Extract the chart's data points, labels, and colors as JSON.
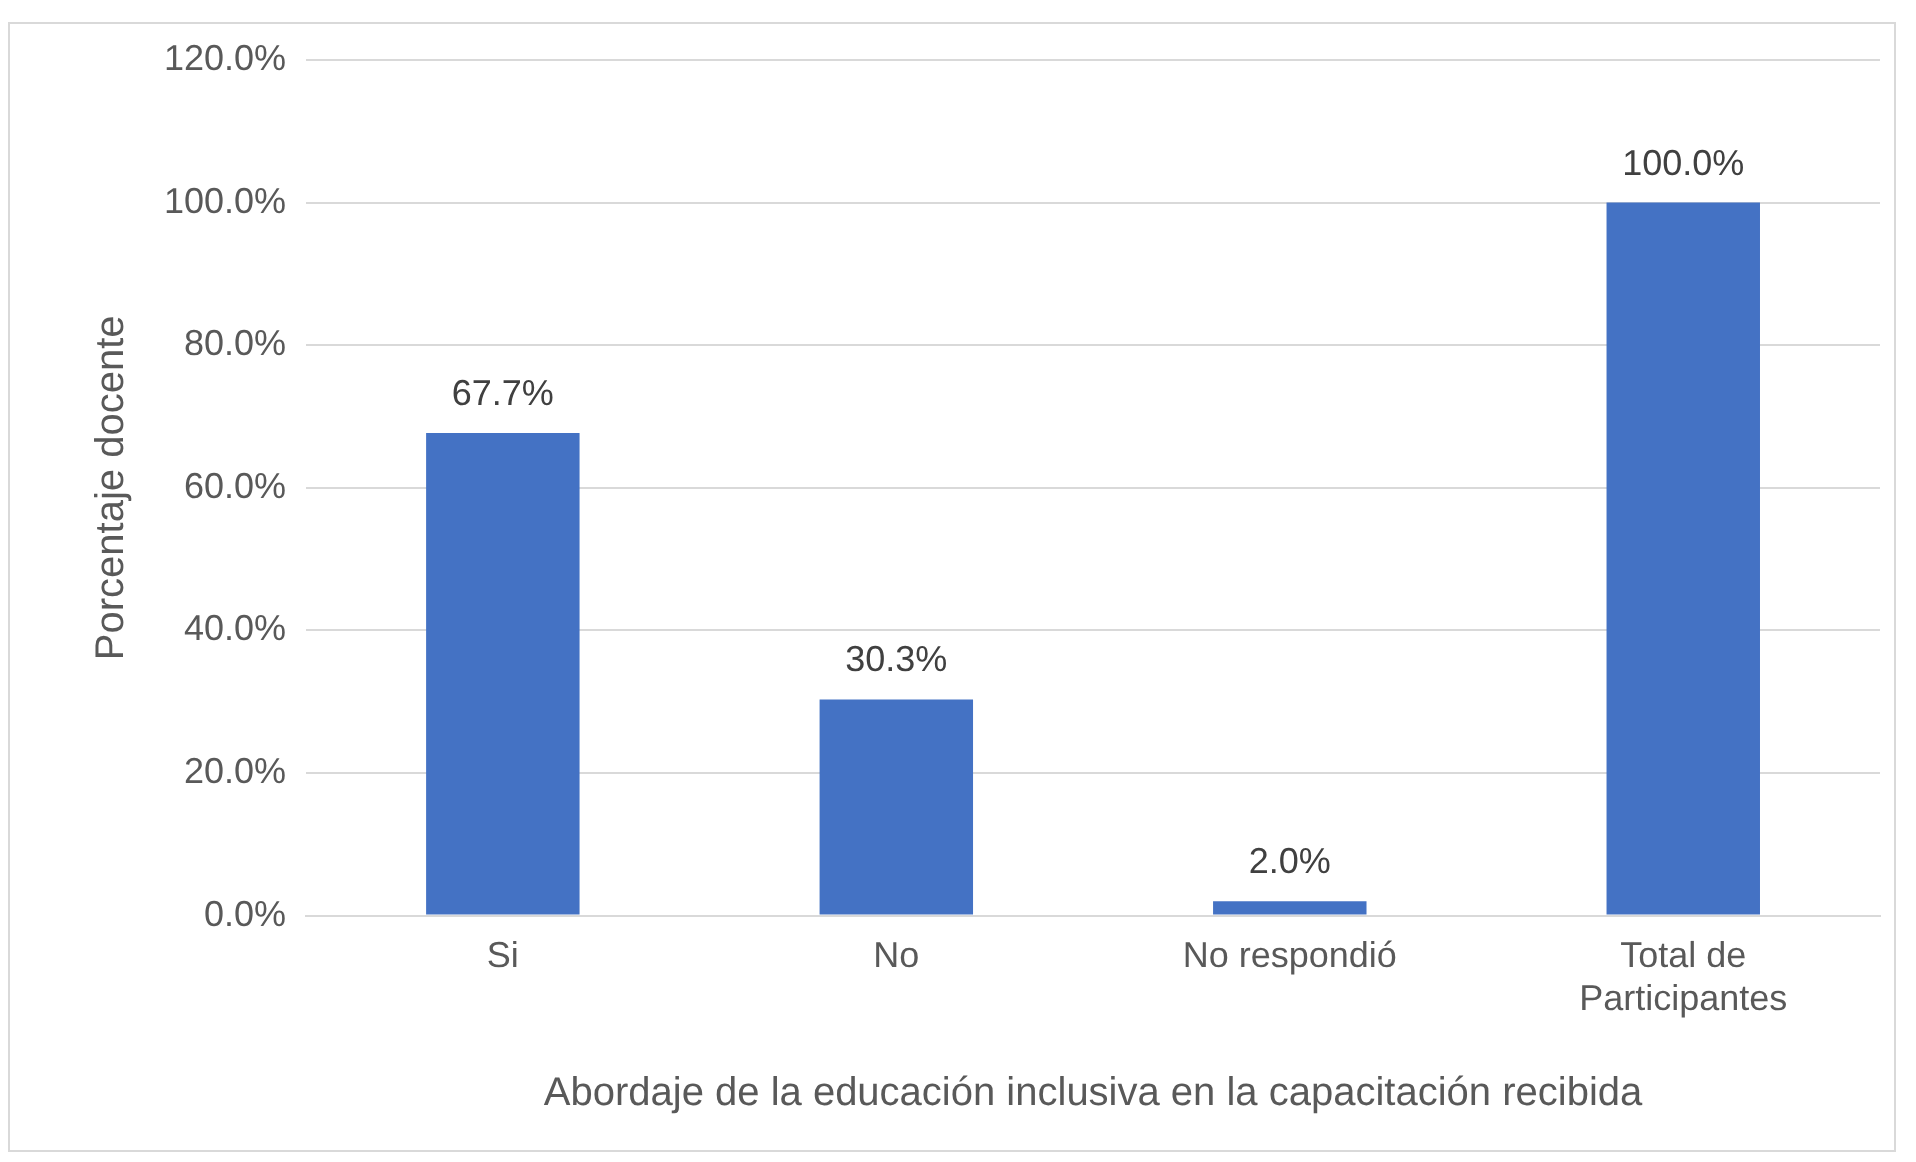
{
  "chart_data": {
    "type": "bar",
    "xlabel": "Abordaje de la educación inclusiva en la capacitación recibida",
    "ylabel": "Porcentaje docente",
    "categories": [
      "Si",
      "No",
      "No respondió",
      "Total de Participantes"
    ],
    "values": [
      67.7,
      30.3,
      2.0,
      100.0
    ],
    "value_labels": [
      "67.7%",
      "30.3%",
      "2.0%",
      "100.0%"
    ],
    "color": "#4472c4",
    "ylim": [
      0,
      120
    ],
    "yticks": [
      {
        "value": 0,
        "label": "0.0%"
      },
      {
        "value": 20,
        "label": "20.0%"
      },
      {
        "value": 40,
        "label": "40.0%"
      },
      {
        "value": 60,
        "label": "60.0%"
      },
      {
        "value": 80,
        "label": "80.0%"
      },
      {
        "value": 100,
        "label": "100.0%"
      },
      {
        "value": 120,
        "label": "120.0%"
      }
    ],
    "grid": "y",
    "legend": false
  }
}
